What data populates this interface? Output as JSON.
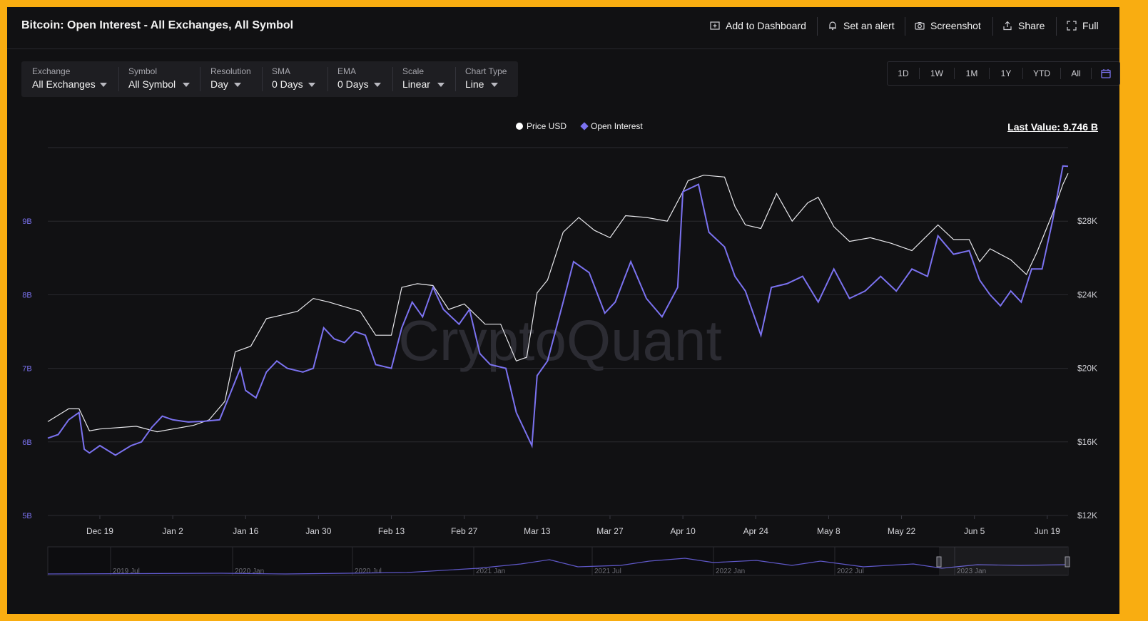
{
  "header": {
    "title": "Bitcoin: Open Interest - All Exchanges, All Symbol",
    "buttons": {
      "add_dashboard": "Add to Dashboard",
      "alert": "Set an alert",
      "screenshot": "Screenshot",
      "share": "Share",
      "full": "Full"
    }
  },
  "controls": [
    {
      "label": "Exchange",
      "value": "All Exchanges"
    },
    {
      "label": "Symbol",
      "value": "All Symbol"
    },
    {
      "label": "Resolution",
      "value": "Day"
    },
    {
      "label": "SMA",
      "value": "0 Days"
    },
    {
      "label": "EMA",
      "value": "0 Days"
    },
    {
      "label": "Scale",
      "value": "Linear"
    },
    {
      "label": "Chart Type",
      "value": "Line"
    }
  ],
  "ranges": [
    "1D",
    "1W",
    "1M",
    "1Y",
    "YTD",
    "All"
  ],
  "legend": {
    "price": "Price USD",
    "oi": "Open Interest"
  },
  "last_value": "Last Value: 9.746 B",
  "watermark": "CryptoQuant",
  "colors": {
    "price": "#ffffff",
    "oi": "#7b72f0",
    "background": "#111113",
    "frame": "#f9ad11"
  },
  "chart_data": {
    "type": "line",
    "y_left": {
      "ticks": [
        "5B",
        "6B",
        "7B",
        "8B",
        "9B"
      ],
      "min": 5,
      "max": 10,
      "unit": "B"
    },
    "y_right": {
      "ticks": [
        "$12K",
        "$16K",
        "$20K",
        "$24K",
        "$28K"
      ],
      "min": 12000,
      "max": 32000
    },
    "x_ticks": [
      "Dec 19",
      "Jan 2",
      "Jan 16",
      "Jan 30",
      "Feb 13",
      "Feb 27",
      "Mar 13",
      "Mar 27",
      "Apr 10",
      "Apr 24",
      "May 8",
      "May 22",
      "Jun 5",
      "Jun 19"
    ],
    "x_start": "2022-12-09",
    "x_end": "2023-06-23",
    "grid": true,
    "series": [
      {
        "name": "Price USD",
        "axis": "right",
        "points": [
          [
            "2022-12-09",
            17100
          ],
          [
            "2022-12-13",
            17800
          ],
          [
            "2022-12-15",
            17800
          ],
          [
            "2022-12-17",
            16600
          ],
          [
            "2022-12-19",
            16700
          ],
          [
            "2022-12-26",
            16850
          ],
          [
            "2022-12-30",
            16550
          ],
          [
            "2023-01-02",
            16700
          ],
          [
            "2023-01-06",
            16900
          ],
          [
            "2023-01-09",
            17200
          ],
          [
            "2023-01-12",
            18200
          ],
          [
            "2023-01-14",
            20900
          ],
          [
            "2023-01-17",
            21200
          ],
          [
            "2023-01-20",
            22700
          ],
          [
            "2023-01-23",
            22900
          ],
          [
            "2023-01-26",
            23100
          ],
          [
            "2023-01-29",
            23800
          ],
          [
            "2023-02-01",
            23600
          ],
          [
            "2023-02-04",
            23350
          ],
          [
            "2023-02-07",
            23100
          ],
          [
            "2023-02-10",
            21800
          ],
          [
            "2023-02-13",
            21800
          ],
          [
            "2023-02-15",
            24400
          ],
          [
            "2023-02-18",
            24600
          ],
          [
            "2023-02-21",
            24500
          ],
          [
            "2023-02-24",
            23200
          ],
          [
            "2023-02-27",
            23500
          ],
          [
            "2023-03-03",
            22400
          ],
          [
            "2023-03-06",
            22400
          ],
          [
            "2023-03-09",
            20400
          ],
          [
            "2023-03-11",
            20600
          ],
          [
            "2023-03-13",
            24100
          ],
          [
            "2023-03-15",
            24800
          ],
          [
            "2023-03-18",
            27400
          ],
          [
            "2023-03-21",
            28200
          ],
          [
            "2023-03-24",
            27500
          ],
          [
            "2023-03-27",
            27100
          ],
          [
            "2023-03-30",
            28300
          ],
          [
            "2023-04-03",
            28200
          ],
          [
            "2023-04-07",
            28000
          ],
          [
            "2023-04-10",
            29600
          ],
          [
            "2023-04-11",
            30200
          ],
          [
            "2023-04-14",
            30500
          ],
          [
            "2023-04-18",
            30400
          ],
          [
            "2023-04-20",
            28800
          ],
          [
            "2023-04-22",
            27800
          ],
          [
            "2023-04-25",
            27600
          ],
          [
            "2023-04-28",
            29500
          ],
          [
            "2023-05-01",
            28000
          ],
          [
            "2023-05-04",
            29000
          ],
          [
            "2023-05-06",
            29300
          ],
          [
            "2023-05-09",
            27700
          ],
          [
            "2023-05-12",
            26900
          ],
          [
            "2023-05-16",
            27100
          ],
          [
            "2023-05-20",
            26800
          ],
          [
            "2023-05-24",
            26400
          ],
          [
            "2023-05-29",
            27800
          ],
          [
            "2023-06-01",
            27000
          ],
          [
            "2023-06-04",
            27000
          ],
          [
            "2023-06-06",
            25800
          ],
          [
            "2023-06-08",
            26500
          ],
          [
            "2023-06-12",
            25900
          ],
          [
            "2023-06-15",
            25100
          ],
          [
            "2023-06-17",
            26300
          ],
          [
            "2023-06-20",
            28400
          ],
          [
            "2023-06-22",
            30000
          ],
          [
            "2023-06-23",
            30600
          ]
        ]
      },
      {
        "name": "Open Interest",
        "axis": "left",
        "points": [
          [
            "2022-12-09",
            6.05
          ],
          [
            "2022-12-11",
            6.1
          ],
          [
            "2022-12-13",
            6.3
          ],
          [
            "2022-12-15",
            6.4
          ],
          [
            "2022-12-16",
            5.9
          ],
          [
            "2022-12-17",
            5.85
          ],
          [
            "2022-12-19",
            5.95
          ],
          [
            "2022-12-22",
            5.82
          ],
          [
            "2022-12-25",
            5.95
          ],
          [
            "2022-12-27",
            6.0
          ],
          [
            "2022-12-29",
            6.2
          ],
          [
            "2022-12-31",
            6.35
          ],
          [
            "2023-01-02",
            6.3
          ],
          [
            "2023-01-05",
            6.27
          ],
          [
            "2023-01-08",
            6.28
          ],
          [
            "2023-01-11",
            6.3
          ],
          [
            "2023-01-13",
            6.65
          ],
          [
            "2023-01-15",
            7.0
          ],
          [
            "2023-01-16",
            6.7
          ],
          [
            "2023-01-18",
            6.6
          ],
          [
            "2023-01-20",
            6.95
          ],
          [
            "2023-01-22",
            7.1
          ],
          [
            "2023-01-24",
            7.0
          ],
          [
            "2023-01-27",
            6.95
          ],
          [
            "2023-01-29",
            7.0
          ],
          [
            "2023-01-31",
            7.55
          ],
          [
            "2023-02-02",
            7.4
          ],
          [
            "2023-02-04",
            7.35
          ],
          [
            "2023-02-06",
            7.5
          ],
          [
            "2023-02-08",
            7.45
          ],
          [
            "2023-02-10",
            7.05
          ],
          [
            "2023-02-13",
            7.0
          ],
          [
            "2023-02-15",
            7.55
          ],
          [
            "2023-02-17",
            7.9
          ],
          [
            "2023-02-19",
            7.7
          ],
          [
            "2023-02-21",
            8.1
          ],
          [
            "2023-02-23",
            7.8
          ],
          [
            "2023-02-26",
            7.6
          ],
          [
            "2023-02-28",
            7.8
          ],
          [
            "2023-03-02",
            7.2
          ],
          [
            "2023-03-04",
            7.05
          ],
          [
            "2023-03-07",
            7.0
          ],
          [
            "2023-03-09",
            6.4
          ],
          [
            "2023-03-12",
            5.95
          ],
          [
            "2023-03-13",
            6.9
          ],
          [
            "2023-03-15",
            7.1
          ],
          [
            "2023-03-18",
            7.9
          ],
          [
            "2023-03-20",
            8.45
          ],
          [
            "2023-03-23",
            8.3
          ],
          [
            "2023-03-26",
            7.75
          ],
          [
            "2023-03-28",
            7.9
          ],
          [
            "2023-03-31",
            8.45
          ],
          [
            "2023-04-03",
            7.95
          ],
          [
            "2023-04-06",
            7.7
          ],
          [
            "2023-04-09",
            8.1
          ],
          [
            "2023-04-10",
            9.4
          ],
          [
            "2023-04-13",
            9.5
          ],
          [
            "2023-04-15",
            8.85
          ],
          [
            "2023-04-18",
            8.65
          ],
          [
            "2023-04-20",
            8.25
          ],
          [
            "2023-04-22",
            8.05
          ],
          [
            "2023-04-25",
            7.45
          ],
          [
            "2023-04-27",
            8.1
          ],
          [
            "2023-04-30",
            8.15
          ],
          [
            "2023-05-03",
            8.25
          ],
          [
            "2023-05-06",
            7.9
          ],
          [
            "2023-05-09",
            8.35
          ],
          [
            "2023-05-12",
            7.95
          ],
          [
            "2023-05-15",
            8.05
          ],
          [
            "2023-05-18",
            8.25
          ],
          [
            "2023-05-21",
            8.05
          ],
          [
            "2023-05-24",
            8.35
          ],
          [
            "2023-05-27",
            8.25
          ],
          [
            "2023-05-29",
            8.8
          ],
          [
            "2023-06-01",
            8.55
          ],
          [
            "2023-06-04",
            8.6
          ],
          [
            "2023-06-06",
            8.2
          ],
          [
            "2023-06-08",
            8.0
          ],
          [
            "2023-06-10",
            7.85
          ],
          [
            "2023-06-12",
            8.05
          ],
          [
            "2023-06-14",
            7.9
          ],
          [
            "2023-06-16",
            8.35
          ],
          [
            "2023-06-18",
            8.35
          ],
          [
            "2023-06-20",
            9.0
          ],
          [
            "2023-06-22",
            9.75
          ],
          [
            "2023-06-23",
            9.746
          ]
        ]
      }
    ],
    "navigator": {
      "labels": [
        "2019 Jul",
        "2020 Jan",
        "2020 Jul",
        "2021 Jan",
        "2021 Jul",
        "2022 Jan",
        "2022 Jul",
        "2023 Jan"
      ]
    }
  }
}
